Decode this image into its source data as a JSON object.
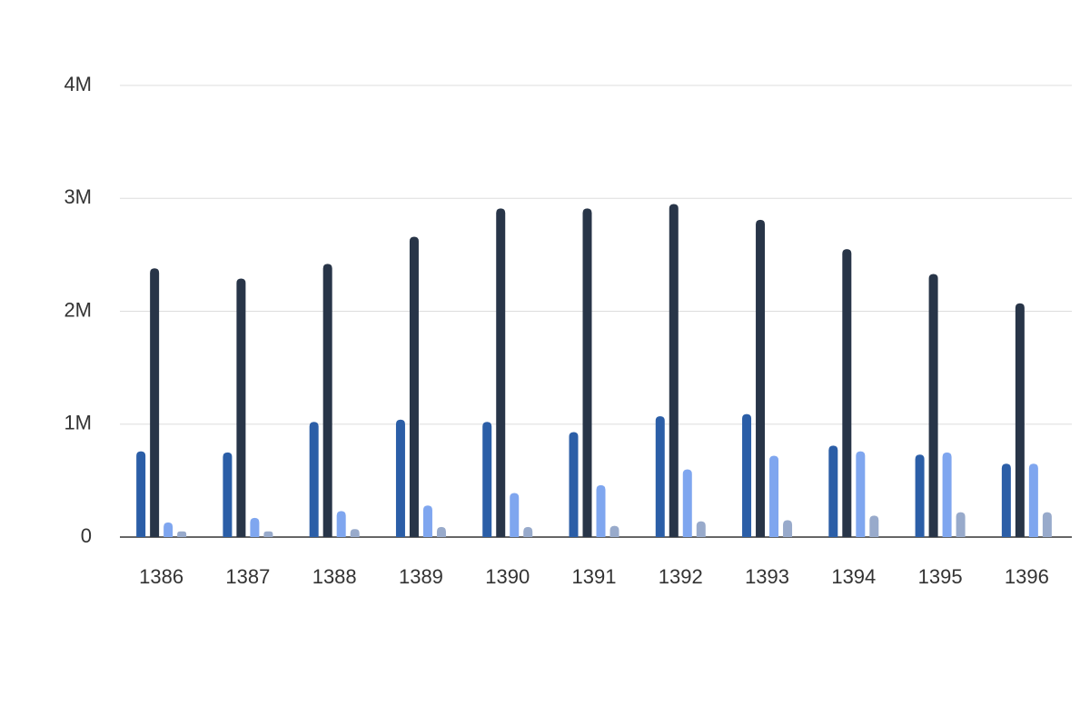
{
  "chart_data": {
    "type": "bar",
    "categories": [
      "1386",
      "1387",
      "1388",
      "1389",
      "1390",
      "1391",
      "1392",
      "1393",
      "1394",
      "1395",
      "1396"
    ],
    "series": [
      {
        "color": "#2b5ea7",
        "values": [
          760000,
          750000,
          1020000,
          1040000,
          1020000,
          930000,
          1070000,
          1090000,
          810000,
          730000,
          650000
        ]
      },
      {
        "color": "#283548",
        "values": [
          2380000,
          2290000,
          2420000,
          2660000,
          2910000,
          2910000,
          2950000,
          2810000,
          2550000,
          2330000,
          2070000
        ]
      },
      {
        "color": "#7fa6ef",
        "values": [
          130000,
          170000,
          230000,
          280000,
          390000,
          460000,
          600000,
          720000,
          760000,
          750000,
          650000
        ]
      },
      {
        "color": "#98aacb",
        "values": [
          50000,
          50000,
          70000,
          90000,
          90000,
          100000,
          140000,
          150000,
          190000,
          220000,
          220000
        ]
      }
    ],
    "ylim": [
      0,
      4000000
    ],
    "yticks": [
      0,
      {
        "value": 1000000,
        "label": "1M"
      },
      {
        "value": 2000000,
        "label": "2M"
      },
      {
        "value": 3000000,
        "label": "3M"
      },
      {
        "value": 4000000,
        "label": "4M"
      }
    ],
    "grid": true
  }
}
